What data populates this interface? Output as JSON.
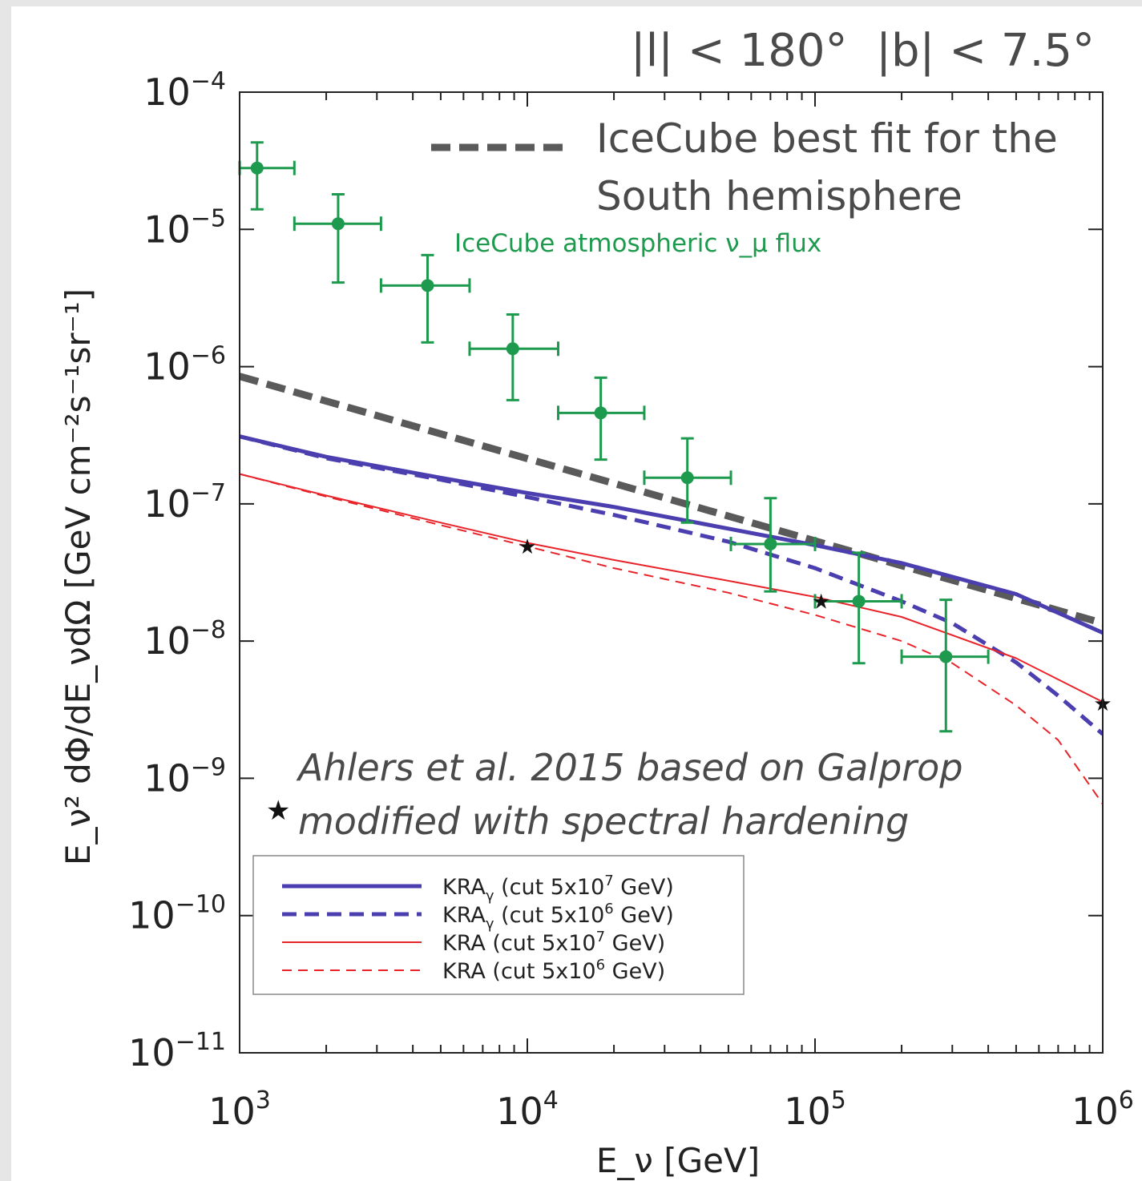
{
  "chart_data": {
    "type": "line",
    "title": "|l| < 180°  |b| < 7.5°",
    "xlabel": "E_ν [GeV]",
    "ylabel": "E_ν² dΦ/dE_νdΩ [GeV cm⁻²s⁻¹sr⁻¹]",
    "x_scale": "log",
    "y_scale": "log",
    "xlim": [
      1000,
      1000000
    ],
    "ylim": [
      1e-11,
      0.0001
    ],
    "x_ticks": [
      {
        "value": 1000,
        "base": "10",
        "exp": "3"
      },
      {
        "value": 10000,
        "base": "10",
        "exp": "4"
      },
      {
        "value": 100000,
        "base": "10",
        "exp": "5"
      },
      {
        "value": 1000000,
        "base": "10",
        "exp": "6"
      }
    ],
    "y_ticks": [
      {
        "value": 0.0001,
        "base": "10",
        "exp": "−4"
      },
      {
        "value": 1e-05,
        "base": "10",
        "exp": "−5"
      },
      {
        "value": 1e-06,
        "base": "10",
        "exp": "−6"
      },
      {
        "value": 1e-07,
        "base": "10",
        "exp": "−7"
      },
      {
        "value": 1e-08,
        "base": "10",
        "exp": "−8"
      },
      {
        "value": 1e-09,
        "base": "10",
        "exp": "−9"
      },
      {
        "value": 1e-10,
        "base": "10",
        "exp": "−10"
      },
      {
        "value": 1e-11,
        "base": "10",
        "exp": "−11"
      }
    ],
    "icecube_fit": {
      "label_line1": "IceCube best fit for the",
      "label_line2": "South hemisphere",
      "color": "#5a5a5a",
      "x": [
        1000,
        1000000
      ],
      "y": [
        8.5e-07,
        1.35e-08
      ]
    },
    "atmospheric": {
      "label": "IceCube atmospheric ν_μ flux",
      "color": "#1e9a4e",
      "points": [
        {
          "x": 1150,
          "y": 2.8e-05,
          "xlo": 1000,
          "xhi": 1550,
          "ylo": 1.4e-05,
          "yhi": 4.3e-05
        },
        {
          "x": 2200,
          "y": 1.1e-05,
          "xlo": 1550,
          "xhi": 3100,
          "ylo": 4.1e-06,
          "yhi": 1.8e-05
        },
        {
          "x": 4500,
          "y": 3.9e-06,
          "xlo": 3100,
          "xhi": 6300,
          "ylo": 1.5e-06,
          "yhi": 6.5e-06
        },
        {
          "x": 8900,
          "y": 1.35e-06,
          "xlo": 6300,
          "xhi": 12800,
          "ylo": 5.7e-07,
          "yhi": 2.4e-06
        },
        {
          "x": 18000,
          "y": 4.6e-07,
          "xlo": 12800,
          "xhi": 25500,
          "ylo": 2.1e-07,
          "yhi": 8.3e-07
        },
        {
          "x": 36000,
          "y": 1.55e-07,
          "xlo": 25500,
          "xhi": 51000,
          "ylo": 7.3e-08,
          "yhi": 3e-07
        },
        {
          "x": 70000,
          "y": 5.1e-08,
          "xlo": 51000,
          "xhi": 100000,
          "ylo": 2.3e-08,
          "yhi": 1.1e-07
        },
        {
          "x": 142000,
          "y": 1.95e-08,
          "xlo": 100000,
          "xhi": 200000,
          "ylo": 6.9e-09,
          "yhi": 4.4e-08
        },
        {
          "x": 285000,
          "y": 7.7e-09,
          "xlo": 200000,
          "xhi": 400000,
          "ylo": 2.2e-09,
          "yhi": 2e-08
        }
      ]
    },
    "ahlers": {
      "label_line1": "Ahlers et al. 2015 based on Galprop",
      "label_line2": "modified with spectral hardening",
      "points": [
        {
          "x": 10000,
          "y": 4.9e-08
        },
        {
          "x": 105000,
          "y": 1.95e-08
        },
        {
          "x": 1000000,
          "y": 3.5e-09
        }
      ]
    },
    "series": [
      {
        "name": "KRAγ (cut 5x10⁷ GeV)",
        "legend_base": "KRA",
        "legend_sub": "γ",
        "legend_cut": "(cut 5x10",
        "legend_exp": "7",
        "legend_unit": " GeV)",
        "color": "#4b3fb0",
        "style": "solid",
        "width": 5,
        "x": [
          1000,
          2000,
          5000,
          10000,
          20000,
          50000,
          100000,
          200000,
          500000,
          1000000
        ],
        "y": [
          3.1e-07,
          2.2e-07,
          1.55e-07,
          1.2e-07,
          9.5e-08,
          6.6e-08,
          5e-08,
          3.7e-08,
          2.2e-08,
          1.15e-08
        ]
      },
      {
        "name": "KRAγ (cut 5x10⁶ GeV)",
        "legend_base": "KRA",
        "legend_sub": "γ",
        "legend_cut": "(cut 5x10",
        "legend_exp": "6",
        "legend_unit": " GeV)",
        "color": "#4b3fb0",
        "style": "dashed",
        "width": 5,
        "x": [
          1000,
          2000,
          5000,
          10000,
          20000,
          50000,
          100000,
          200000,
          300000,
          500000,
          700000,
          1000000
        ],
        "y": [
          3.1e-07,
          2.15e-07,
          1.5e-07,
          1.12e-07,
          8.3e-08,
          5.3e-08,
          3.4e-08,
          1.95e-08,
          1.35e-08,
          7e-09,
          4e-09,
          2.1e-09
        ]
      },
      {
        "name": "KRA (cut 5x10⁷ GeV)",
        "legend_base": "KRA",
        "legend_sub": "",
        "legend_cut": "(cut 5x10",
        "legend_exp": "7",
        "legend_unit": " GeV)",
        "color": "#e8242a",
        "style": "solid",
        "width": 2,
        "x": [
          1000,
          2000,
          5000,
          10000,
          20000,
          50000,
          100000,
          200000,
          500000,
          1000000
        ],
        "y": [
          1.65e-07,
          1.15e-07,
          7.3e-08,
          5.2e-08,
          3.9e-08,
          2.75e-08,
          2.1e-08,
          1.5e-08,
          7.5e-09,
          3.6e-09
        ]
      },
      {
        "name": "KRA (cut 5x10⁶ GeV)",
        "legend_base": "KRA",
        "legend_sub": "",
        "legend_cut": "(cut 5x10",
        "legend_exp": "6",
        "legend_unit": " GeV)",
        "color": "#e8242a",
        "style": "dashed",
        "width": 2,
        "x": [
          1000,
          2000,
          5000,
          10000,
          20000,
          50000,
          100000,
          200000,
          300000,
          500000,
          700000,
          1000000
        ],
        "y": [
          1.65e-07,
          1.13e-07,
          7e-08,
          4.9e-08,
          3.4e-08,
          2.25e-08,
          1.55e-08,
          1e-08,
          6.9e-09,
          3.4e-09,
          1.9e-09,
          6.5e-10
        ]
      }
    ],
    "legend_position": "bottom-left"
  }
}
